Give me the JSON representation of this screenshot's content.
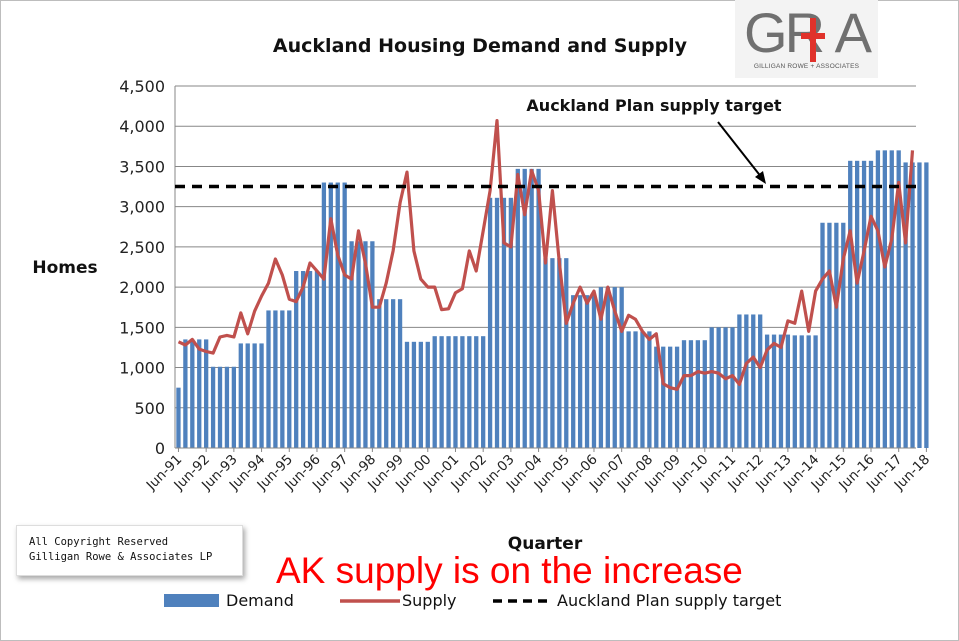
{
  "logo": {
    "text": "GR+A",
    "subtitle": "GILLIGAN ROWE + ASSOCIATES",
    "accent_color": "#e0322b"
  },
  "copyright": {
    "line1": "All Copyright Reserved",
    "line2": "Gilligan Rowe & Associates LP"
  },
  "callout": "AK supply is on the increase",
  "callout_color": "#ff0000",
  "chart_data": {
    "type": "bar+line",
    "title": "Auckland Housing Demand and Supply",
    "xlabel": "Quarter",
    "ylabel": "Homes",
    "ylim": [
      0,
      4500
    ],
    "yticks": [
      "0",
      "500",
      "1,000",
      "1,500",
      "2,000",
      "2,500",
      "3,000",
      "3,500",
      "4,000",
      "4,500"
    ],
    "grid": "horizontal",
    "legend_position": "bottom",
    "x_tick_labels": [
      "Jun-91",
      "Jun-92",
      "Jun-93",
      "Jun-94",
      "Jun-95",
      "Jun-96",
      "Jun-97",
      "Jun-98",
      "Jun-99",
      "Jun-00",
      "Jun-01",
      "Jun-02",
      "Jun-03",
      "Jun-04",
      "Jun-05",
      "Jun-06",
      "Jun-07",
      "Jun-08",
      "Jun-09",
      "Jun-10",
      "Jun-11",
      "Jun-12",
      "Jun-13",
      "Jun-14",
      "Jun-15",
      "Jun-16",
      "Jun-17",
      "Jun-18"
    ],
    "annotation": "Auckland Plan supply target",
    "demand": {
      "name": "Demand",
      "color": "#4f81bd",
      "annual_values": [
        1350,
        1010,
        1300,
        1710,
        2200,
        3300,
        2570,
        1850,
        1320,
        1390,
        1390,
        3110,
        3470,
        2360,
        1900,
        2000,
        1450,
        1260,
        1340,
        1500,
        1660,
        1410,
        1400,
        2800,
        3570,
        3700,
        3550,
        3550
      ],
      "first_quarter_value": 750
    },
    "supply": {
      "name": "Supply",
      "color": "#c0504d",
      "values": [
        1320,
        1280,
        1350,
        1230,
        1200,
        1180,
        1380,
        1400,
        1380,
        1680,
        1420,
        1700,
        1890,
        2050,
        2350,
        2150,
        1850,
        1820,
        2000,
        2300,
        2200,
        2100,
        2850,
        2400,
        2150,
        2100,
        2700,
        2300,
        1750,
        1750,
        2050,
        2450,
        3050,
        3430,
        2450,
        2100,
        2000,
        2000,
        1720,
        1730,
        1930,
        1980,
        2450,
        2200,
        2700,
        3200,
        4070,
        2550,
        2500,
        3400,
        2900,
        3450,
        3200,
        2300,
        3200,
        2300,
        1550,
        1800,
        2000,
        1800,
        1950,
        1600,
        2000,
        1700,
        1450,
        1650,
        1600,
        1450,
        1350,
        1420,
        800,
        750,
        730,
        900,
        900,
        950,
        930,
        950,
        930,
        860,
        900,
        790,
        1050,
        1130,
        1000,
        1220,
        1300,
        1250,
        1580,
        1550,
        1950,
        1450,
        1950,
        2100,
        2200,
        1750,
        2350,
        2700,
        2050,
        2450,
        2880,
        2700,
        2250,
        2600,
        3300,
        2550,
        3700
      ],
      "first_x": "Jun-91",
      "last_x": "Jun-18",
      "interval": "quarterly"
    },
    "target": {
      "name": "Auckland Plan supply target",
      "value": 3250,
      "style": "dashed",
      "color": "#000000"
    }
  }
}
